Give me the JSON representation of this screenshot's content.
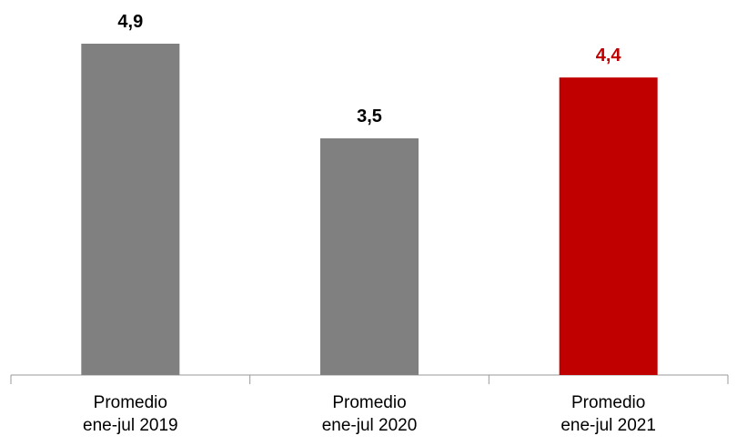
{
  "chart_data": {
    "type": "bar",
    "categories": [
      "Promedio ene-jul 2019",
      "Promedio ene-jul 2020",
      "Promedio ene-jul 2021"
    ],
    "values": [
      4.9,
      3.5,
      4.4
    ],
    "value_labels": [
      "4,9",
      "3,5",
      "4,4"
    ],
    "colors": [
      "#808080",
      "#808080",
      "#c00000"
    ],
    "label_colors": [
      "#000000",
      "#000000",
      "#c00000"
    ]
  }
}
